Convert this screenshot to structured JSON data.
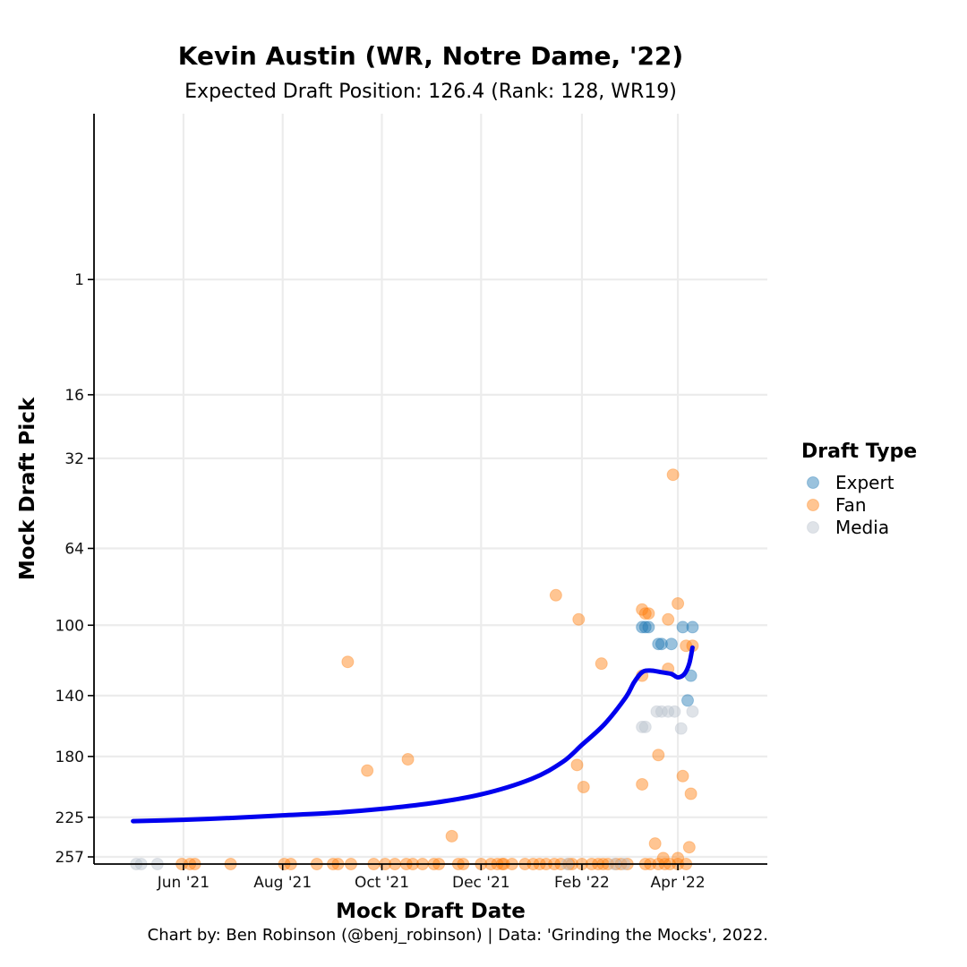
{
  "chart_data": {
    "type": "scatter",
    "title": "Kevin Austin (WR, Notre Dame, '22)",
    "subtitle": "Expected Draft Position: 126.4 (Rank: 128, WR19)",
    "xlabel": "Mock Draft Date",
    "ylabel": "Mock Draft Pick",
    "caption": "Chart by: Ben Robinson (@benj_robinson) | Data: 'Grinding the Mocks', 2022.",
    "xlim": [
      "2021-04-07",
      "2022-05-26"
    ],
    "ylim": [
      263,
      -11
    ],
    "y_scale": "sqrt",
    "grid": true,
    "x_ticks": [
      {
        "date": "2021-06-01",
        "label": "Jun '21"
      },
      {
        "date": "2021-08-01",
        "label": "Aug '21"
      },
      {
        "date": "2021-10-01",
        "label": "Oct '21"
      },
      {
        "date": "2021-12-01",
        "label": "Dec '21"
      },
      {
        "date": "2022-02-01",
        "label": "Feb '22"
      },
      {
        "date": "2022-04-01",
        "label": "Apr '22"
      }
    ],
    "y_ticks": [
      1,
      16,
      32,
      64,
      100,
      140,
      180,
      225,
      257
    ],
    "legend": {
      "title": "Draft Type",
      "position": "right",
      "items": [
        {
          "label": "Expert",
          "color": "#1f77b4"
        },
        {
          "label": "Fan",
          "color": "#ff7f0e"
        },
        {
          "label": "Media",
          "color": "#b8c0cc"
        }
      ]
    },
    "point_opacity": 0.45,
    "trend_color": "#0000ee",
    "series": [
      {
        "name": "Expert",
        "color": "#1f77b4",
        "points": [
          [
            "2022-03-10",
            101
          ],
          [
            "2022-03-12",
            101
          ],
          [
            "2022-03-14",
            101
          ],
          [
            "2022-03-20",
            110
          ],
          [
            "2022-03-22",
            110
          ],
          [
            "2022-03-28",
            110
          ],
          [
            "2022-04-04",
            101
          ],
          [
            "2022-04-10",
            101
          ],
          [
            "2022-04-09",
            128
          ],
          [
            "2022-04-07",
            143
          ]
        ]
      },
      {
        "name": "Fan",
        "color": "#ff7f0e",
        "points": [
          [
            "2021-09-10",
            120
          ],
          [
            "2021-09-22",
            190
          ],
          [
            "2021-10-17",
            182
          ],
          [
            "2021-11-13",
            240
          ],
          [
            "2022-01-16",
            85
          ],
          [
            "2022-01-30",
            97
          ],
          [
            "2022-01-29",
            186
          ],
          [
            "2022-02-02",
            202
          ],
          [
            "2022-02-13",
            121
          ],
          [
            "2022-03-10",
            92
          ],
          [
            "2022-03-12",
            94
          ],
          [
            "2022-03-14",
            94
          ],
          [
            "2022-03-10",
            128
          ],
          [
            "2022-03-10",
            200
          ],
          [
            "2022-03-20",
            179
          ],
          [
            "2022-03-26",
            97
          ],
          [
            "2022-03-26",
            124
          ],
          [
            "2022-03-29",
            37
          ],
          [
            "2022-04-01",
            89
          ],
          [
            "2022-04-04",
            194
          ],
          [
            "2022-04-06",
            111
          ],
          [
            "2022-04-10",
            111
          ],
          [
            "2022-04-09",
            207
          ],
          [
            "2022-03-18",
            246
          ],
          [
            "2022-03-23",
            258
          ],
          [
            "2022-04-01",
            258
          ],
          [
            "2022-04-08",
            249
          ],
          [
            "2021-05-31",
            263
          ],
          [
            "2021-06-05",
            263
          ],
          [
            "2021-06-08",
            263
          ],
          [
            "2021-06-30",
            263
          ],
          [
            "2021-08-02",
            263
          ],
          [
            "2021-08-06",
            263
          ],
          [
            "2021-08-22",
            263
          ],
          [
            "2021-09-01",
            263
          ],
          [
            "2021-09-04",
            263
          ],
          [
            "2021-09-12",
            263
          ],
          [
            "2021-09-26",
            263
          ],
          [
            "2021-10-03",
            263
          ],
          [
            "2021-10-09",
            263
          ],
          [
            "2021-10-16",
            263
          ],
          [
            "2021-10-20",
            263
          ],
          [
            "2021-10-26",
            263
          ],
          [
            "2021-11-02",
            263
          ],
          [
            "2021-11-05",
            263
          ],
          [
            "2021-11-17",
            263
          ],
          [
            "2021-11-20",
            263
          ],
          [
            "2021-12-01",
            263
          ],
          [
            "2021-12-07",
            263
          ],
          [
            "2021-12-11",
            263
          ],
          [
            "2021-12-14",
            263
          ],
          [
            "2021-12-15",
            263
          ],
          [
            "2021-12-20",
            263
          ],
          [
            "2021-12-28",
            263
          ],
          [
            "2022-01-02",
            263
          ],
          [
            "2022-01-06",
            263
          ],
          [
            "2022-01-10",
            263
          ],
          [
            "2022-01-15",
            263
          ],
          [
            "2022-01-19",
            263
          ],
          [
            "2022-01-24",
            263
          ],
          [
            "2022-01-26",
            263
          ],
          [
            "2022-02-01",
            263
          ],
          [
            "2022-02-07",
            263
          ],
          [
            "2022-02-11",
            263
          ],
          [
            "2022-02-14",
            263
          ],
          [
            "2022-02-17",
            263
          ],
          [
            "2022-02-22",
            263
          ],
          [
            "2022-02-25",
            263
          ],
          [
            "2022-03-01",
            263
          ],
          [
            "2022-03-12",
            263
          ],
          [
            "2022-03-15",
            263
          ],
          [
            "2022-03-20",
            263
          ],
          [
            "2022-03-24",
            263
          ],
          [
            "2022-03-27",
            263
          ],
          [
            "2022-04-01",
            263
          ],
          [
            "2022-04-06",
            263
          ]
        ]
      },
      {
        "name": "Media",
        "color": "#b8c0cc",
        "points": [
          [
            "2021-05-03",
            263
          ],
          [
            "2021-05-06",
            263
          ],
          [
            "2021-05-16",
            263
          ],
          [
            "2022-01-23",
            263
          ],
          [
            "2022-02-21",
            263
          ],
          [
            "2022-02-27",
            263
          ],
          [
            "2022-03-10",
            160
          ],
          [
            "2022-03-12",
            160
          ],
          [
            "2022-03-19",
            150
          ],
          [
            "2022-03-22",
            150
          ],
          [
            "2022-03-26",
            150
          ],
          [
            "2022-03-30",
            150
          ],
          [
            "2022-04-03",
            161
          ],
          [
            "2022-04-10",
            150
          ]
        ]
      }
    ],
    "trend": [
      [
        "2021-05-01",
        228
      ],
      [
        "2021-06-01",
        227
      ],
      [
        "2021-07-01",
        225.5
      ],
      [
        "2021-08-01",
        223.5
      ],
      [
        "2021-09-01",
        221.5
      ],
      [
        "2021-10-01",
        218.5
      ],
      [
        "2021-11-01",
        214
      ],
      [
        "2021-12-01",
        207.5
      ],
      [
        "2022-01-01",
        196
      ],
      [
        "2022-01-20",
        184
      ],
      [
        "2022-02-01",
        172
      ],
      [
        "2022-02-15",
        158
      ],
      [
        "2022-02-28",
        141
      ],
      [
        "2022-03-05",
        132
      ],
      [
        "2022-03-10",
        126
      ],
      [
        "2022-03-15",
        125
      ],
      [
        "2022-03-22",
        126
      ],
      [
        "2022-03-28",
        127
      ],
      [
        "2022-04-01",
        129
      ],
      [
        "2022-04-05",
        127
      ],
      [
        "2022-04-08",
        121
      ],
      [
        "2022-04-10",
        112
      ]
    ]
  }
}
